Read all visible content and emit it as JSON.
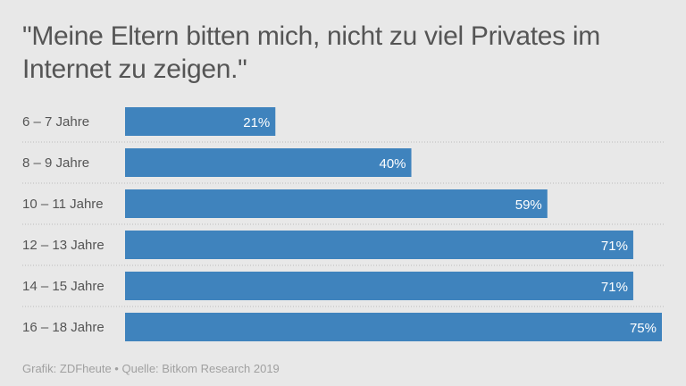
{
  "chart_data": {
    "type": "bar",
    "orientation": "horizontal",
    "title": "\"Meine Eltern bitten mich, nicht zu viel Privates im Internet zu zeigen.\"",
    "categories": [
      "6 – 7 Jahre",
      "8 – 9 Jahre",
      "10 – 11 Jahre",
      "12 – 13 Jahre",
      "14 – 15 Jahre",
      "16 – 18 Jahre"
    ],
    "values": [
      21,
      40,
      59,
      71,
      71,
      75
    ],
    "value_suffix": "%",
    "xlim": [
      0,
      75
    ],
    "grid": false,
    "bar_color": "#3f83bd",
    "background": "#e8e8e8"
  },
  "source": "Grafik: ZDFheute • Quelle: Bitkom Research 2019"
}
